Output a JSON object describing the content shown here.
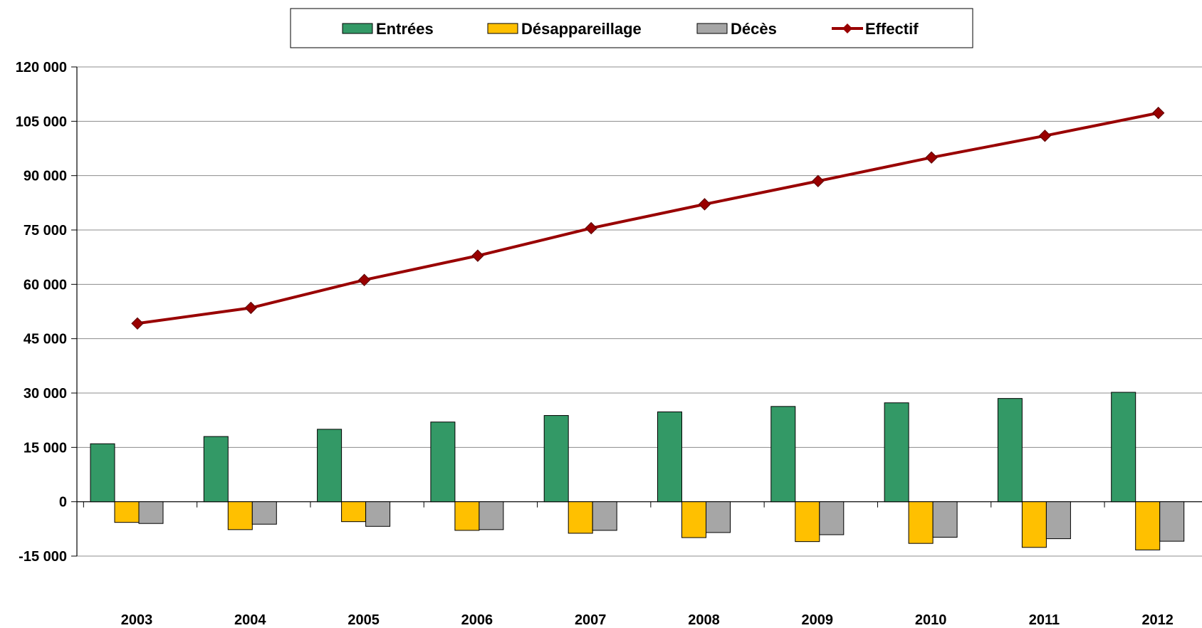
{
  "chart_data": {
    "type": "bar",
    "categories": [
      "2003",
      "2004",
      "2005",
      "2006",
      "2007",
      "2008",
      "2009",
      "2010",
      "2011",
      "2012"
    ],
    "series": [
      {
        "name": "Entrées",
        "type": "bar",
        "color": "#339966",
        "values": [
          16000,
          18000,
          20000,
          22000,
          23800,
          24800,
          26300,
          27300,
          28500,
          30200
        ]
      },
      {
        "name": "Désappareillage",
        "type": "bar",
        "color": "#FFC000",
        "values": [
          -5700,
          -7700,
          -5500,
          -7900,
          -8700,
          -9900,
          -11000,
          -11500,
          -12600,
          -13300
        ]
      },
      {
        "name": "Décès",
        "type": "bar",
        "color": "#A6A6A6",
        "values": [
          -6000,
          -6200,
          -6800,
          -7700,
          -7900,
          -8500,
          -9100,
          -9800,
          -10200,
          -10900
        ]
      },
      {
        "name": "Effectif",
        "type": "line",
        "color": "#990000",
        "values": [
          49200,
          53500,
          61200,
          67900,
          75500,
          82100,
          88500,
          95000,
          101000,
          107300
        ]
      }
    ],
    "y_ticks": [
      "-15 000",
      "0",
      "15 000",
      "30 000",
      "45 000",
      "60 000",
      "75 000",
      "90 000",
      "105 000",
      "120 000"
    ],
    "ylim": [
      -15000,
      120000
    ],
    "grid": true,
    "legend": "top"
  }
}
